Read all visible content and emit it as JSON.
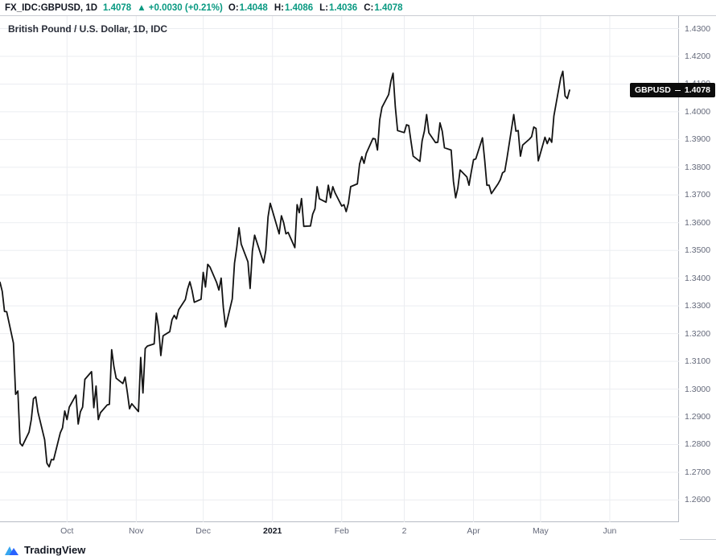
{
  "header": {
    "symbol": "FX_IDC:GBPUSD, 1D",
    "last_price": "1.4078",
    "change": "▲ +0.0030 (+0.21%)",
    "ohlc": {
      "o_label": "O:",
      "o": "1.4048",
      "h_label": "H:",
      "h": "1.4086",
      "l_label": "L:",
      "l": "1.4036",
      "c_label": "C:",
      "c": "1.4078"
    },
    "accent_color": "#089981"
  },
  "chart": {
    "legend": "British Pound / U.S. Dollar, 1D, IDC",
    "price_label": {
      "symbol": "GBPUSD",
      "price": "1.4078",
      "bg": "#0c0c0c",
      "fg": "#ffffff"
    }
  },
  "footer": {
    "brand": "TradingView",
    "logo_colors": {
      "light": "#37a6ef",
      "dark": "#2962ff"
    }
  },
  "chart_data": {
    "type": "line",
    "title": "British Pound / U.S. Dollar, 1D, IDC",
    "symbol": "GBPUSD",
    "line_color": "#131313",
    "grid": true,
    "legend_position": "top-left",
    "y_min": 1.252,
    "y_max": 1.4345,
    "y_ticks": [
      "1.4300",
      "1.4200",
      "1.4100",
      "1.4000",
      "1.3900",
      "1.3800",
      "1.3700",
      "1.3600",
      "1.3500",
      "1.3400",
      "1.3300",
      "1.3200",
      "1.3100",
      "1.3000",
      "1.2900",
      "1.2800",
      "1.2700",
      "1.2600"
    ],
    "x_domain_days": 304,
    "x_ticks": [
      {
        "label": "Oct",
        "day": 30
      },
      {
        "label": "Nov",
        "day": 61
      },
      {
        "label": "Dec",
        "day": 91
      },
      {
        "label": "2021",
        "day": 122,
        "year": true
      },
      {
        "label": "Feb",
        "day": 153
      },
      {
        "label": "2",
        "day": 181
      },
      {
        "label": "Apr",
        "day": 212
      },
      {
        "label": "May",
        "day": 242
      },
      {
        "label": "Jun",
        "day": 273
      }
    ],
    "days": [
      0,
      1,
      2,
      3,
      6,
      7,
      8,
      9,
      10,
      13,
      14,
      15,
      16,
      17,
      20,
      21,
      22,
      23,
      24,
      27,
      28,
      29,
      30,
      31,
      34,
      35,
      36,
      37,
      38,
      41,
      42,
      43,
      44,
      45,
      48,
      49,
      50,
      51,
      52,
      55,
      56,
      57,
      58,
      59,
      62,
      63,
      64,
      65,
      66,
      69,
      70,
      71,
      72,
      73,
      76,
      77,
      78,
      79,
      80,
      83,
      84,
      85,
      86,
      87,
      90,
      91,
      92,
      93,
      94,
      97,
      98,
      99,
      100,
      101,
      104,
      105,
      106,
      107,
      108,
      111,
      112,
      113,
      114,
      118,
      119,
      120,
      121,
      125,
      126,
      127,
      128,
      129,
      132,
      133,
      134,
      135,
      136,
      139,
      140,
      141,
      142,
      143,
      146,
      147,
      148,
      149,
      150,
      153,
      154,
      155,
      156,
      157,
      160,
      161,
      162,
      163,
      164,
      167,
      168,
      169,
      170,
      171,
      174,
      175,
      176,
      177,
      178,
      181,
      182,
      183,
      184,
      185,
      188,
      189,
      190,
      191,
      192,
      195,
      196,
      197,
      198,
      199,
      202,
      203,
      204,
      205,
      206,
      209,
      210,
      211,
      212,
      213,
      216,
      217,
      218,
      219,
      220,
      223,
      224,
      225,
      226,
      227,
      230,
      231,
      232,
      233,
      234,
      237,
      238,
      239,
      240,
      241,
      244,
      245,
      246,
      247,
      248,
      251,
      252,
      253,
      254,
      255
    ],
    "values": [
      1.3385,
      1.3352,
      1.328,
      1.3279,
      1.3166,
      1.2981,
      1.2993,
      1.2805,
      1.2795,
      1.2845,
      1.289,
      1.2965,
      1.2972,
      1.2917,
      1.2817,
      1.2733,
      1.272,
      1.2746,
      1.2745,
      1.2843,
      1.286,
      1.2921,
      1.289,
      1.2935,
      1.2978,
      1.2874,
      1.2918,
      1.2935,
      1.3035,
      1.3063,
      1.2933,
      1.3011,
      1.289,
      1.2915,
      1.2943,
      1.2945,
      1.3142,
      1.3081,
      1.3039,
      1.302,
      1.3043,
      1.2988,
      1.2929,
      1.2947,
      1.2919,
      1.3114,
      1.2986,
      1.3146,
      1.3155,
      1.3163,
      1.3274,
      1.3222,
      1.3121,
      1.3192,
      1.3207,
      1.325,
      1.3266,
      1.3253,
      1.3286,
      1.3323,
      1.3361,
      1.3387,
      1.3355,
      1.3313,
      1.3324,
      1.3421,
      1.3368,
      1.345,
      1.344,
      1.3384,
      1.3357,
      1.34,
      1.3294,
      1.3224,
      1.3325,
      1.3454,
      1.351,
      1.3582,
      1.3523,
      1.3459,
      1.3363,
      1.3497,
      1.3555,
      1.3455,
      1.35,
      1.3621,
      1.367,
      1.356,
      1.3625,
      1.36,
      1.356,
      1.3565,
      1.351,
      1.3665,
      1.3636,
      1.3687,
      1.3587,
      1.3588,
      1.3631,
      1.365,
      1.373,
      1.3686,
      1.3674,
      1.3735,
      1.369,
      1.373,
      1.3708,
      1.366,
      1.3665,
      1.364,
      1.3671,
      1.373,
      1.374,
      1.3812,
      1.3838,
      1.3814,
      1.385,
      1.3904,
      1.3902,
      1.3862,
      1.3971,
      1.4016,
      1.4062,
      1.411,
      1.4139,
      1.4017,
      1.3932,
      1.3925,
      1.3953,
      1.395,
      1.3895,
      1.384,
      1.3821,
      1.3895,
      1.393,
      1.399,
      1.3924,
      1.3889,
      1.389,
      1.396,
      1.393,
      1.387,
      1.3862,
      1.375,
      1.369,
      1.3725,
      1.379,
      1.3765,
      1.3735,
      1.3783,
      1.3827,
      1.383,
      1.3906,
      1.3825,
      1.3735,
      1.3735,
      1.3705,
      1.374,
      1.3755,
      1.378,
      1.3785,
      1.3833,
      1.399,
      1.393,
      1.3932,
      1.384,
      1.388,
      1.3901,
      1.391,
      1.3945,
      1.394,
      1.3823,
      1.3908,
      1.3885,
      1.3905,
      1.389,
      1.3985,
      1.4121,
      1.4146,
      1.4057,
      1.4048,
      1.4078
    ]
  }
}
